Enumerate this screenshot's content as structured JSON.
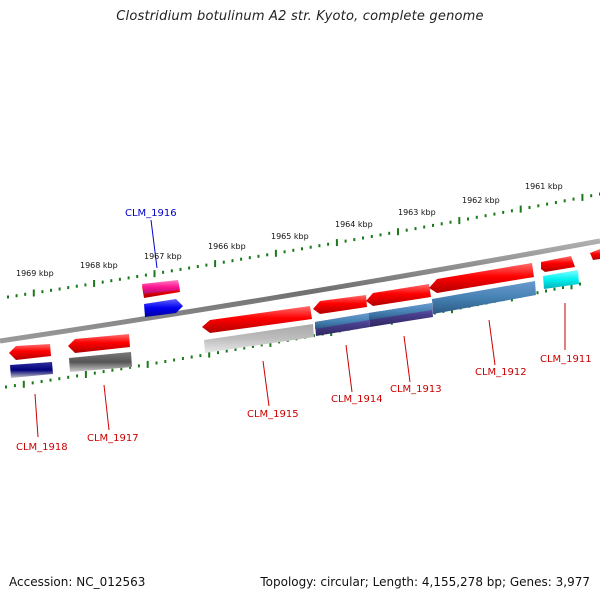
{
  "map": {
    "title": "Clostridium botulinum A2 str. Kyoto, complete genome",
    "accession_label": "Accession: NC_012563",
    "summary_label": "Topology: circular; Length: 4,155,278 bp; Genes: 3,977"
  },
  "ruler": {
    "kbp_labels": [
      "1969 kbp",
      "1968 kbp",
      "1967 kbp",
      "1966 kbp",
      "1965 kbp",
      "1964 kbp",
      "1963 kbp",
      "1962 kbp",
      "1961 kbp"
    ]
  },
  "genes": [
    {
      "name": "CLM_1916",
      "label_color": "#0000cc",
      "strand": "forward"
    },
    {
      "name": "CLM_1915",
      "label_color": "#cc0000",
      "strand": "reverse"
    },
    {
      "name": "CLM_1914",
      "label_color": "#cc0000",
      "strand": "reverse"
    },
    {
      "name": "CLM_1913",
      "label_color": "#cc0000",
      "strand": "reverse"
    },
    {
      "name": "CLM_1912",
      "label_color": "#cc0000",
      "strand": "reverse"
    },
    {
      "name": "CLM_1911",
      "label_color": "#cc0000",
      "strand": "reverse"
    },
    {
      "name": "CLM_1917",
      "label_color": "#cc0000",
      "strand": "reverse"
    },
    {
      "name": "CLM_1918",
      "label_color": "#cc0000",
      "strand": "reverse"
    }
  ],
  "colors": {
    "backbone": "#808080",
    "tick": "#1a7a1a",
    "cds": "#ff0000",
    "forward_label": "#0000cc",
    "reverse_label": "#cc0000"
  }
}
